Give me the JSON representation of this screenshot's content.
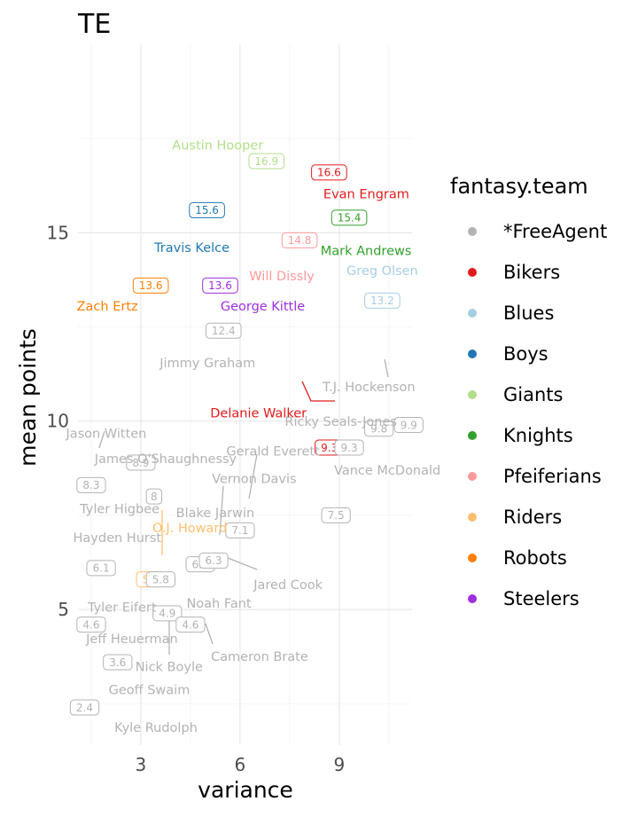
{
  "chart_data": {
    "type": "scatter",
    "title": "TE",
    "xlabel": "variance",
    "ylabel": "mean points",
    "xlim": [
      1.1,
      11.2
    ],
    "ylim": [
      1.4,
      20.0
    ],
    "x_ticks": [
      3,
      6,
      9
    ],
    "y_ticks": [
      5,
      10,
      15
    ],
    "grid": true,
    "legend": {
      "title": "fantasy.team",
      "position": "right",
      "entries": [
        {
          "name": "*FreeAgent",
          "color": "#b3b3b3"
        },
        {
          "name": "Bikers",
          "color": "#e31a1c"
        },
        {
          "name": "Blues",
          "color": "#a6cee3"
        },
        {
          "name": "Boys",
          "color": "#1f78b4"
        },
        {
          "name": "Giants",
          "color": "#b2df8a"
        },
        {
          "name": "Knights",
          "color": "#33a02c"
        },
        {
          "name": "Pfeiferians",
          "color": "#fb9a99"
        },
        {
          "name": "Riders",
          "color": "#fdbf6f"
        },
        {
          "name": "Robots",
          "color": "#ff7f00"
        },
        {
          "name": "Steelers",
          "color": "#9f2fe0"
        }
      ]
    },
    "points": [
      {
        "name": "Austin Hooper",
        "team": "Giants",
        "x": 6.8,
        "y": 16.9,
        "label": "16.9"
      },
      {
        "name": "Evan Engram",
        "team": "Bikers",
        "x": 8.8,
        "y": 16.6,
        "label": "16.6"
      },
      {
        "name": "Travis Kelce",
        "team": "Boys",
        "x": 5.0,
        "y": 15.6,
        "label": "15.6"
      },
      {
        "name": "Mark Andrews",
        "team": "Knights",
        "x": 9.3,
        "y": 15.4,
        "label": "15.4"
      },
      {
        "name": "Will Dissly",
        "team": "Pfeiferians",
        "x": 7.8,
        "y": 14.8,
        "label": "14.8"
      },
      {
        "name": "Zach Ertz",
        "team": "Robots",
        "x": 3.3,
        "y": 13.6,
        "label": "13.6"
      },
      {
        "name": "George Kittle",
        "team": "Steelers",
        "x": 5.4,
        "y": 13.6,
        "label": "13.6"
      },
      {
        "name": "Greg Olsen",
        "team": "Blues",
        "x": 10.3,
        "y": 13.2,
        "label": "13.2"
      },
      {
        "name": "Jimmy Graham",
        "team": "*FreeAgent",
        "x": 5.5,
        "y": 12.4,
        "label": "12.4"
      },
      {
        "name": "T.J. Hockenson",
        "team": "*FreeAgent",
        "x": 11.1,
        "y": 9.9,
        "label": "9.9"
      },
      {
        "name": "Ricky Seals-Jones",
        "team": "*FreeAgent",
        "x": 10.2,
        "y": 9.8,
        "label": "9.8"
      },
      {
        "name": "Delanie Walker",
        "team": "Bikers",
        "x": 8.7,
        "y": 9.3,
        "label": "9.3"
      },
      {
        "name": "Gerald Everett",
        "team": "*FreeAgent",
        "x": 9.3,
        "y": 9.3,
        "label": "9.3"
      },
      {
        "name": "Jason Witten",
        "team": "*FreeAgent",
        "x": 3.0,
        "y": 8.9,
        "label": "8.9"
      },
      {
        "name": "James O'Shaughnessy",
        "team": "*FreeAgent",
        "x": 1.5,
        "y": 8.3,
        "label": "8.3"
      },
      {
        "name": "Vernon Davis",
        "team": "*FreeAgent",
        "x": 3.4,
        "y": 8.0,
        "label": "8"
      },
      {
        "name": "Vance McDonald",
        "team": "*FreeAgent",
        "x": 8.9,
        "y": 7.5,
        "label": "7.5"
      },
      {
        "name": "Blake Jarwin",
        "team": "*FreeAgent",
        "x": 6.0,
        "y": 7.1,
        "label": "7.1"
      },
      {
        "name": "O.J. Howard",
        "team": "Riders",
        "x": 3.3,
        "y": 5.8,
        "label": "5.8"
      },
      {
        "name": "Hayden Hurst",
        "team": "*FreeAgent",
        "x": 3.6,
        "y": 5.8,
        "label": "5.8"
      },
      {
        "name": "Tyler Higbee",
        "team": "*FreeAgent",
        "x": 1.8,
        "y": 6.1,
        "label": "6.1"
      },
      {
        "name": "Jared Cook",
        "team": "*FreeAgent",
        "x": 4.8,
        "y": 6.2,
        "label": "6.2"
      },
      {
        "name": "Noah Fant",
        "team": "*FreeAgent",
        "x": 5.2,
        "y": 6.3,
        "label": "6.3"
      },
      {
        "name": "Tyler Eifert",
        "team": "*FreeAgent",
        "x": 3.8,
        "y": 4.9,
        "label": "4.9"
      },
      {
        "name": "Jeff Heuerman",
        "team": "*FreeAgent",
        "x": 1.5,
        "y": 4.6,
        "label": "4.6"
      },
      {
        "name": "Cameron Brate",
        "team": "*FreeAgent",
        "x": 4.5,
        "y": 4.6,
        "label": "4.6"
      },
      {
        "name": "Nick Boyle",
        "team": "*FreeAgent",
        "x": 2.3,
        "y": 3.6,
        "label": "3.6"
      },
      {
        "name": "Geoff Swaim",
        "team": "*FreeAgent",
        "x": 1.3,
        "y": 2.4,
        "label": "2.4"
      },
      {
        "name": "Kyle Rudolph",
        "team": "*FreeAgent",
        "x": 2.0,
        "y": 1.8,
        "label": ""
      }
    ]
  }
}
